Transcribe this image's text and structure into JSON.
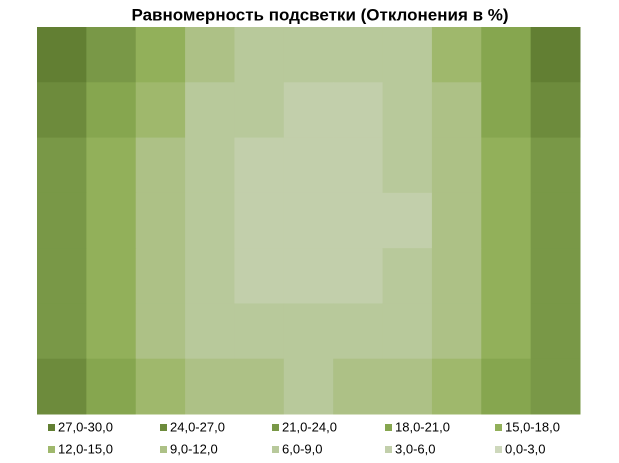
{
  "chart_data": {
    "type": "contour",
    "title": "Равномерность подсветки (Отклонения в %)",
    "bands": [
      {
        "label": "27,0-30,0",
        "range": [
          27,
          30
        ],
        "color": "#627f33"
      },
      {
        "label": "24,0-27,0",
        "range": [
          24,
          27
        ],
        "color": "#6d8b3c"
      },
      {
        "label": "21,0-24,0",
        "range": [
          21,
          24
        ],
        "color": "#799847"
      },
      {
        "label": "18,0-21,0",
        "range": [
          18,
          21
        ],
        "color": "#86a64f"
      },
      {
        "label": "15,0-18,0",
        "range": [
          15,
          18
        ],
        "color": "#92b05a"
      },
      {
        "label": "12,0-15,0",
        "range": [
          12,
          15
        ],
        "color": "#9fb86c"
      },
      {
        "label": "9,0-12,0",
        "range": [
          9,
          12
        ],
        "color": "#adc186"
      },
      {
        "label": "6,0-9,0",
        "range": [
          6,
          9
        ],
        "color": "#b8c99b"
      },
      {
        "label": "3,0-6,0",
        "range": [
          3,
          6
        ],
        "color": "#c2cfab"
      },
      {
        "label": "0,0-3,0",
        "range": [
          0,
          3
        ],
        "color": "#ced8bc"
      }
    ],
    "z": [
      [
        27,
        22,
        16,
        10,
        7,
        6,
        6,
        8,
        13,
        20,
        27
      ],
      [
        25,
        19,
        13,
        8,
        6,
        5,
        5,
        7,
        11,
        18,
        25
      ],
      [
        23,
        17,
        11,
        7,
        5,
        4,
        4,
        6,
        10,
        16,
        23
      ],
      [
        22,
        16,
        10,
        6,
        4,
        3,
        4,
        5,
        9,
        15,
        22
      ],
      [
        22,
        16,
        9,
        6,
        4,
        4,
        5,
        6,
        9,
        15,
        21
      ],
      [
        23,
        17,
        11,
        8,
        7,
        6,
        7,
        8,
        11,
        17,
        22
      ],
      [
        24,
        19,
        14,
        11,
        9,
        8,
        9,
        10,
        13,
        18,
        23
      ]
    ]
  }
}
